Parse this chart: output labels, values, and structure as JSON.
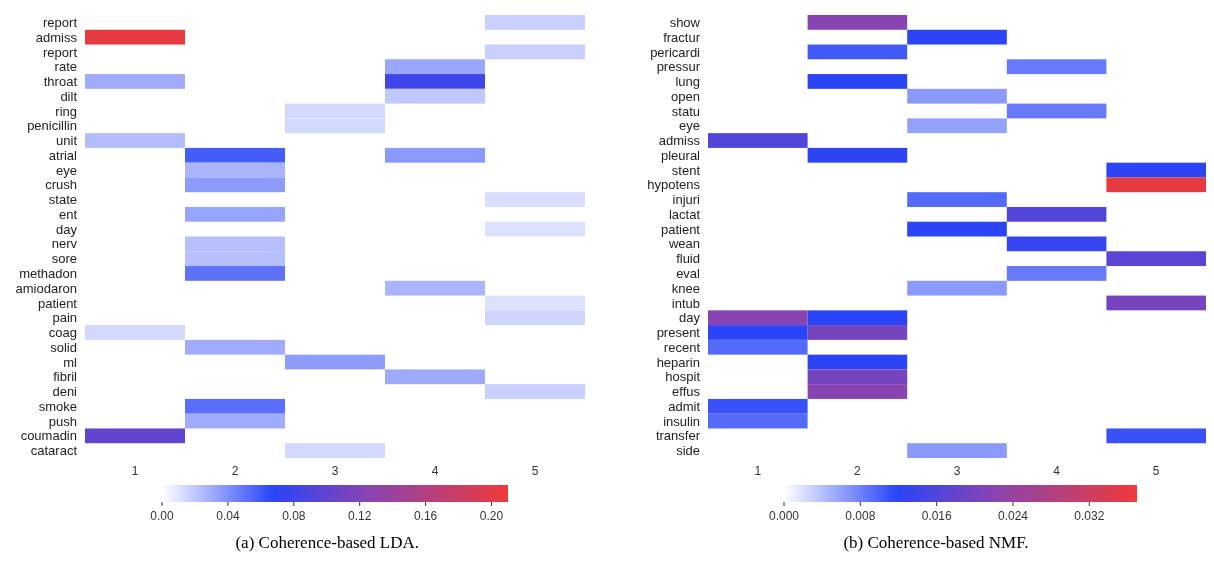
{
  "chart_data": [
    {
      "type": "heatmap",
      "title": "(a) Coherence-based LDA.",
      "categories": [
        "1",
        "2",
        "3",
        "4",
        "5"
      ],
      "y_categories": [
        "report",
        "admiss",
        "report",
        "rate",
        "throat",
        "dilt",
        "ring",
        "penicillin",
        "unit",
        "atrial",
        "eye",
        "crush",
        "state",
        "ent",
        "day",
        "nerv",
        "sore",
        "methadon",
        "amiodaron",
        "patient",
        "pain",
        "coag",
        "solid",
        "ml",
        "fibril",
        "deni",
        "smoke",
        "push",
        "coumadin",
        "cataract"
      ],
      "cells": [
        [
          null,
          null,
          null,
          null,
          0.017
        ],
        [
          0.205,
          null,
          null,
          null,
          null
        ],
        [
          null,
          null,
          null,
          null,
          0.017
        ],
        [
          null,
          null,
          null,
          0.032,
          null
        ],
        [
          0.03,
          null,
          null,
          0.08,
          null
        ],
        [
          null,
          null,
          null,
          0.02,
          null
        ],
        [
          null,
          null,
          0.014,
          null,
          null
        ],
        [
          null,
          null,
          0.014,
          null,
          null
        ],
        [
          0.024,
          null,
          null,
          null,
          null
        ],
        [
          null,
          0.059,
          null,
          0.037,
          null
        ],
        [
          null,
          0.027,
          null,
          null,
          null
        ],
        [
          null,
          0.036,
          null,
          null,
          null
        ],
        [
          null,
          null,
          null,
          null,
          0.012
        ],
        [
          null,
          0.033,
          null,
          null,
          null
        ],
        [
          null,
          null,
          null,
          null,
          0.011
        ],
        [
          null,
          0.023,
          null,
          null,
          null
        ],
        [
          null,
          0.023,
          null,
          null,
          null
        ],
        [
          null,
          0.051,
          null,
          null,
          null
        ],
        [
          null,
          null,
          null,
          0.027,
          null
        ],
        [
          null,
          null,
          null,
          null,
          0.011
        ],
        [
          null,
          null,
          null,
          null,
          0.015
        ],
        [
          0.014,
          null,
          null,
          null,
          null
        ],
        [
          null,
          0.03,
          null,
          null,
          null
        ],
        [
          null,
          null,
          0.036,
          null,
          null
        ],
        [
          null,
          null,
          null,
          0.031,
          null
        ],
        [
          null,
          null,
          null,
          null,
          0.017
        ],
        [
          null,
          0.052,
          null,
          null,
          null
        ],
        [
          null,
          0.03,
          null,
          null,
          null
        ],
        [
          0.1,
          null,
          null,
          null,
          null
        ],
        [
          null,
          null,
          0.014,
          null,
          null
        ]
      ],
      "clim": [
        0,
        0.21
      ],
      "cticks": [
        {
          "value": 0,
          "label": "0.00"
        },
        {
          "value": 0.04,
          "label": "0.04"
        },
        {
          "value": 0.08,
          "label": "0.08"
        },
        {
          "value": 0.12,
          "label": "0.12"
        },
        {
          "value": 0.16,
          "label": "0.16"
        },
        {
          "value": 0.2,
          "label": "0.20"
        }
      ]
    },
    {
      "type": "heatmap",
      "title": "(b) Coherence-based NMF.",
      "categories": [
        "1",
        "2",
        "3",
        "4",
        "5"
      ],
      "y_categories": [
        "show",
        "fractur",
        "pericardi",
        "pressur",
        "lung",
        "open",
        "statu",
        "eye",
        "admiss",
        "pleural",
        "stent",
        "hypotens",
        "injuri",
        "lactat",
        "patient",
        "wean",
        "fluid",
        "eval",
        "knee",
        "intub",
        "day",
        "present",
        "recent",
        "heparin",
        "hospit",
        "effus",
        "admit",
        "insulin",
        "transfer",
        "side"
      ],
      "cells": [
        [
          null,
          0.022,
          null,
          null,
          null
        ],
        [
          null,
          null,
          0.012,
          null,
          null
        ],
        [
          null,
          0.0105,
          null,
          null,
          null
        ],
        [
          null,
          null,
          null,
          0.0085,
          null
        ],
        [
          null,
          0.012,
          null,
          null,
          null
        ],
        [
          null,
          null,
          0.0065,
          null,
          null
        ],
        [
          null,
          null,
          null,
          0.0085,
          null
        ],
        [
          null,
          null,
          0.006,
          null,
          null
        ],
        [
          0.016,
          null,
          null,
          null,
          null
        ],
        [
          null,
          0.012,
          null,
          null,
          null
        ],
        [
          null,
          null,
          null,
          null,
          0.012
        ],
        [
          null,
          null,
          null,
          null,
          0.036
        ],
        [
          null,
          null,
          0.0095,
          null,
          null
        ],
        [
          null,
          null,
          null,
          0.016,
          null
        ],
        [
          null,
          null,
          0.012,
          null,
          null
        ],
        [
          null,
          null,
          null,
          0.013,
          null
        ],
        [
          null,
          null,
          null,
          null,
          0.017
        ],
        [
          null,
          null,
          null,
          0.0085,
          null
        ],
        [
          null,
          null,
          0.0065,
          null,
          null
        ],
        [
          null,
          null,
          null,
          null,
          0.02
        ],
        [
          0.022,
          0.012,
          null,
          null,
          null
        ],
        [
          0.012,
          0.02,
          null,
          null,
          null
        ],
        [
          0.0095,
          null,
          null,
          null,
          null
        ],
        [
          null,
          0.012,
          null,
          null,
          null
        ],
        [
          null,
          0.02,
          null,
          null,
          null
        ],
        [
          null,
          0.022,
          null,
          null,
          null
        ],
        [
          0.011,
          null,
          null,
          null,
          null
        ],
        [
          0.0095,
          null,
          null,
          null,
          null
        ],
        [
          null,
          null,
          null,
          null,
          0.011
        ],
        [
          null,
          null,
          0.0065,
          null,
          null
        ]
      ],
      "clim": [
        0,
        0.037
      ],
      "cticks": [
        {
          "value": 0,
          "label": "0.000"
        },
        {
          "value": 0.008,
          "label": "0.008"
        },
        {
          "value": 0.016,
          "label": "0.016"
        },
        {
          "value": 0.024,
          "label": "0.024"
        },
        {
          "value": 0.032,
          "label": "0.032"
        }
      ]
    }
  ]
}
